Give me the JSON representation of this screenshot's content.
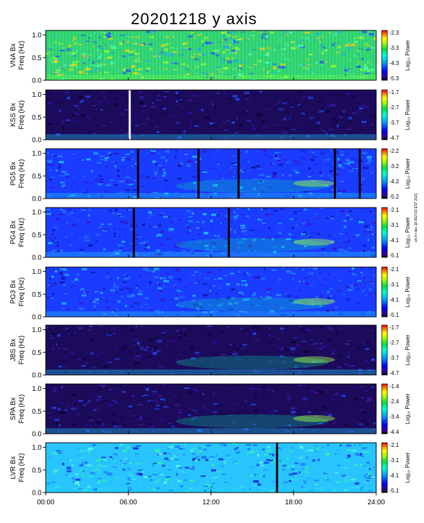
{
  "chart_data": {
    "type": "heatmap",
    "title": "20201218 y axis",
    "stamp": "srt Fri dec 18 062733 EST 2021",
    "x": {
      "range_hours": [
        0,
        24
      ],
      "tick_hours": [
        0,
        6,
        12,
        18,
        24
      ],
      "tick_labels": [
        "00:00",
        "06:00",
        "12:00",
        "18:00",
        "24:00"
      ]
    },
    "freq_label": "Freq (Hz)",
    "freq_ticks": [
      "0.0",
      "0.5",
      "1.0"
    ],
    "freq_range": [
      0,
      1.1
    ],
    "colorbar_label": "Log₁₀ Power",
    "panels": [
      {
        "station": "VNA Bx",
        "cbar_ticks": [
          "-2.3",
          "-3.3",
          "-4.3",
          "-5.3"
        ],
        "background": "green",
        "gaps_hours": []
      },
      {
        "station": "KSS Bx",
        "cbar_ticks": [
          "-1.7",
          "-2.7",
          "-3.7",
          "-4.7"
        ],
        "background": "dark",
        "gaps_hours": [
          6.1
        ]
      },
      {
        "station": "PG5 Bx",
        "cbar_ticks": [
          "-2.2",
          "-3.2",
          "-4.2",
          "-5.2"
        ],
        "background": "blue",
        "gaps_hours": [
          6.7,
          11.1,
          14.0,
          21.0,
          22.8
        ]
      },
      {
        "station": "PG4 Bx",
        "cbar_ticks": [
          "-2.1",
          "-3.1",
          "-4.1",
          "-5.1"
        ],
        "background": "blue",
        "gaps_hours": [
          6.4,
          13.3
        ]
      },
      {
        "station": "PG3 Bx",
        "cbar_ticks": [
          "-2.1",
          "-3.1",
          "-4.1",
          "-5.1"
        ],
        "background": "blue",
        "gaps_hours": []
      },
      {
        "station": "JBS Bx",
        "cbar_ticks": [
          "-1.7",
          "-2.7",
          "-3.7",
          "-4.7"
        ],
        "background": "dark",
        "gaps_hours": []
      },
      {
        "station": "SPA Bx",
        "cbar_ticks": [
          "-1.4",
          "-2.4",
          "-3.4",
          "-4.4"
        ],
        "background": "dark",
        "gaps_hours": []
      },
      {
        "station": "LVR Bx",
        "cbar_ticks": [
          "-2.1",
          "-3.1",
          "-4.1",
          "-5.1"
        ],
        "background": "cyan",
        "gaps_hours": [
          16.8
        ]
      }
    ]
  }
}
